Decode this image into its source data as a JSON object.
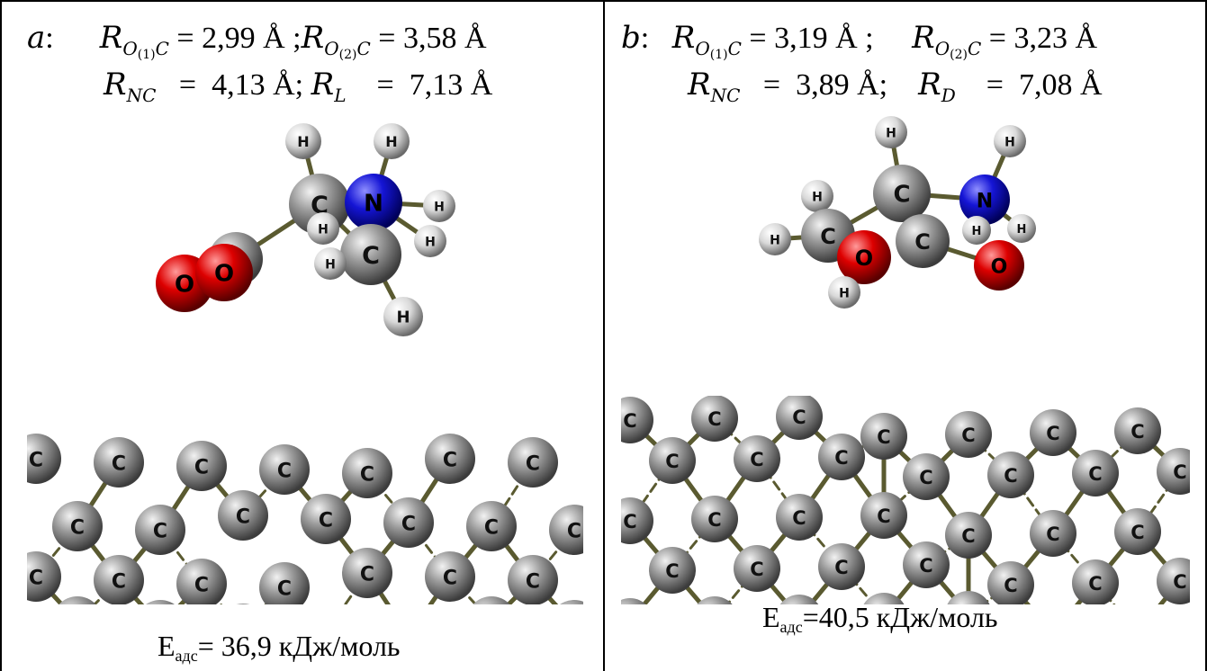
{
  "panels": [
    {
      "tag": "a",
      "line1": {
        "v1": "2,99 Å",
        "v2": "3,58 Å"
      },
      "line2": {
        "v1": "4,13 Å",
        "v2": "7,13 Å",
        "sub": "L"
      },
      "energy": "= 36,9 кДж/моль"
    },
    {
      "tag": "b",
      "line1": {
        "v1": "3,19 Å",
        "v2": "3,23 Å"
      },
      "line2": {
        "v1": "3,89 Å",
        "v2": "7,08 Å",
        "sub": "D"
      },
      "energy": "=40,5 кДж/моль"
    }
  ],
  "common": {
    "R": "R",
    "O": "O",
    "idx1": "(1)",
    "idx2": "(2)",
    "C": "C",
    "NC": "NC",
    "E": "E",
    "ads": "адс",
    "atom_C": "C",
    "atom_N": "N",
    "atom_O": "O",
    "atom_H": "H"
  },
  "colors": {
    "carbon": "#8c8c8c",
    "nitrogen": "#1414d2",
    "oxygen": "#d90000",
    "hydrogen": "#d8d8d8",
    "bond": "#5a5a30"
  }
}
